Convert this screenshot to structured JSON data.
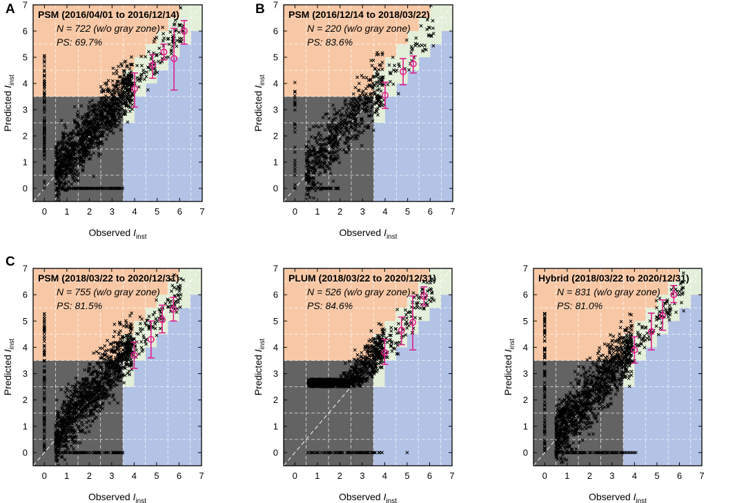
{
  "figure": {
    "panel_letters": [
      "A",
      "B",
      "C"
    ]
  },
  "colors": {
    "over": "#f8c8a6",
    "neutral": "#e3efd8",
    "under": "#b3c3e6",
    "gray": "#636363",
    "error": "#dd1d8c",
    "marker": "#000000",
    "grid": "#ffffff"
  },
  "axis_labels": {
    "xlabel": "Observed",
    "ylabel": "Predicted",
    "symbol": "I",
    "subscript": "inst"
  },
  "chart_data": [
    {
      "type": "scatter",
      "title": "PSM (2016/04/01 to 2016/12/14)",
      "n_text": "N = 722 (w/o gray zone)",
      "ps_text": "PS: 69.7%",
      "xlim": [
        -0.5,
        7
      ],
      "ylim": [
        -0.5,
        7
      ],
      "xticks": [
        0,
        1,
        2,
        3,
        4,
        5,
        6,
        7
      ],
      "yticks": [
        0,
        1,
        2,
        3,
        4,
        5,
        6,
        7
      ],
      "grid": true,
      "errorbars": [
        {
          "x": 4.0,
          "y": 3.8,
          "lo": 3.1,
          "hi": 4.4
        },
        {
          "x": 4.8,
          "y": 4.7,
          "lo": 4.2,
          "hi": 5.1
        },
        {
          "x": 5.3,
          "y": 5.2,
          "lo": 4.9,
          "hi": 5.5
        },
        {
          "x": 5.75,
          "y": 4.95,
          "lo": 3.75,
          "hi": 6.1
        },
        {
          "x": 6.2,
          "y": 6.0,
          "lo": 5.5,
          "hi": 6.4
        }
      ]
    },
    {
      "type": "scatter",
      "title": "PSM (2016/12/14 to 2018/03/22)",
      "n_text": "N = 220 (w/o gray zone)",
      "ps_text": "PS: 83.6%",
      "xlim": [
        -0.5,
        7
      ],
      "ylim": [
        -0.5,
        7
      ],
      "xticks": [
        0,
        1,
        2,
        3,
        4,
        5,
        6,
        7
      ],
      "yticks": [
        0,
        1,
        2,
        3,
        4,
        5,
        6,
        7
      ],
      "grid": true,
      "errorbars": [
        {
          "x": 4.0,
          "y": 3.55,
          "lo": 3.05,
          "hi": 4.05
        },
        {
          "x": 4.8,
          "y": 4.45,
          "lo": 3.95,
          "hi": 4.95
        },
        {
          "x": 5.25,
          "y": 4.75,
          "lo": 4.4,
          "hi": 5.05
        }
      ]
    },
    {
      "type": "scatter",
      "title": "PSM (2018/03/22 to 2020/12/31)",
      "n_text": "N = 755 (w/o gray zone)",
      "ps_text": "PS: 81.5%",
      "xlim": [
        -0.5,
        7
      ],
      "ylim": [
        -0.5,
        7
      ],
      "xticks": [
        0,
        1,
        2,
        3,
        4,
        5,
        6,
        7
      ],
      "yticks": [
        0,
        1,
        2,
        3,
        4,
        5,
        6,
        7
      ],
      "grid": true,
      "errorbars": [
        {
          "x": 4.0,
          "y": 3.7,
          "lo": 3.2,
          "hi": 4.2
        },
        {
          "x": 4.75,
          "y": 4.3,
          "lo": 3.6,
          "hi": 5.0
        },
        {
          "x": 5.25,
          "y": 5.05,
          "lo": 4.55,
          "hi": 5.6
        },
        {
          "x": 5.75,
          "y": 5.45,
          "lo": 5.0,
          "hi": 5.9
        }
      ]
    },
    {
      "type": "scatter",
      "title": "PLUM (2018/03/22 to 2020/12/31)",
      "n_text": "N = 526 (w/o gray zone)",
      "ps_text": "PS: 84.6%",
      "xlim": [
        -0.5,
        7
      ],
      "ylim": [
        -0.5,
        7
      ],
      "xticks": [
        0,
        1,
        2,
        3,
        4,
        5,
        6,
        7
      ],
      "yticks": [
        0,
        1,
        2,
        3,
        4,
        5,
        6,
        7
      ],
      "grid": true,
      "errorbars": [
        {
          "x": 4.0,
          "y": 3.8,
          "lo": 3.35,
          "hi": 4.3
        },
        {
          "x": 4.75,
          "y": 4.65,
          "lo": 4.1,
          "hi": 5.15
        },
        {
          "x": 5.25,
          "y": 4.95,
          "lo": 3.9,
          "hi": 5.95
        },
        {
          "x": 5.75,
          "y": 5.95,
          "lo": 5.6,
          "hi": 6.3
        }
      ]
    },
    {
      "type": "scatter",
      "title": "Hybrid (2018/03/22 to 2020/12/31)",
      "n_text": "N = 831 (w/o gray zone)",
      "ps_text": "PS: 81.0%",
      "xlim": [
        -0.5,
        7
      ],
      "ylim": [
        -0.5,
        7
      ],
      "xticks": [
        0,
        1,
        2,
        3,
        4,
        5,
        6,
        7
      ],
      "yticks": [
        0,
        1,
        2,
        3,
        4,
        5,
        6,
        7
      ],
      "grid": true,
      "errorbars": [
        {
          "x": 4.0,
          "y": 3.9,
          "lo": 3.4,
          "hi": 4.4
        },
        {
          "x": 4.75,
          "y": 4.6,
          "lo": 3.9,
          "hi": 5.3
        },
        {
          "x": 5.25,
          "y": 5.2,
          "lo": 4.65,
          "hi": 5.8
        },
        {
          "x": 5.75,
          "y": 6.0,
          "lo": 5.7,
          "hi": 6.35
        }
      ]
    }
  ]
}
